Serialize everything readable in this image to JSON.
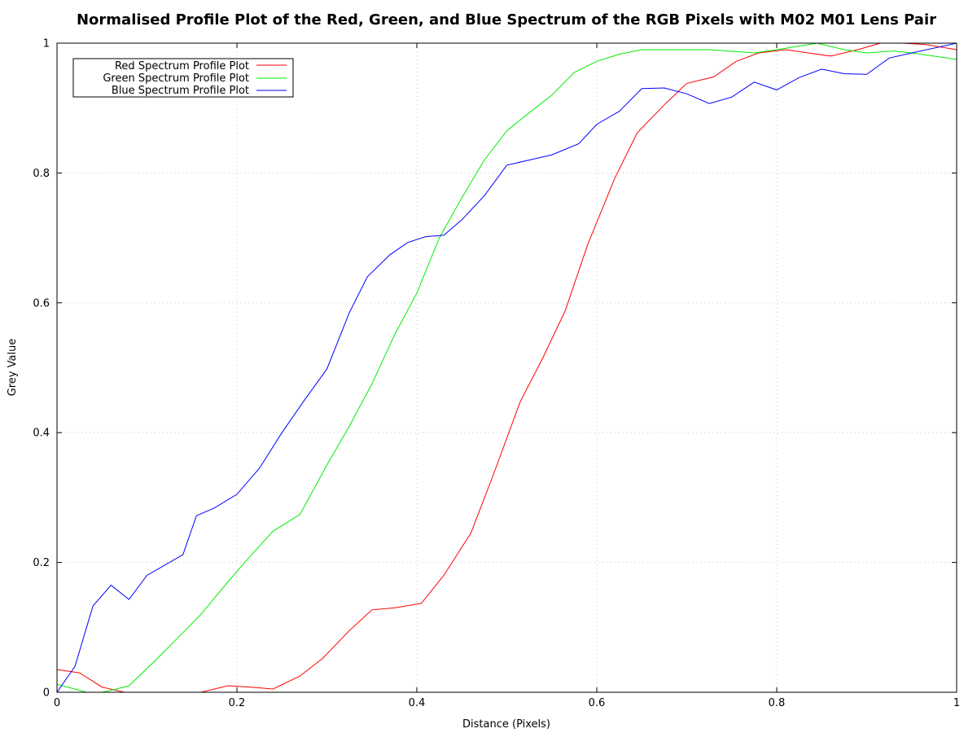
{
  "chart_data": {
    "type": "line",
    "title": "Normalised Profile Plot of the Red, Green, and Blue Spectrum of the RGB Pixels with M02 M01 Lens Pair",
    "xlabel": "Distance (Pixels)",
    "ylabel": "Grey Value",
    "xlim": [
      0,
      1
    ],
    "ylim": [
      0,
      1
    ],
    "x_ticks": [
      "0",
      "0.2",
      "0.4",
      "0.6",
      "0.8",
      "1"
    ],
    "y_ticks": [
      "0",
      "0.2",
      "0.4",
      "0.6",
      "0.8",
      "1"
    ],
    "grid": true,
    "legend_position": "top-left",
    "series": [
      {
        "name": "Red Spectrum Profile Plot",
        "color": "#ff0000",
        "x": [
          0,
          0.025,
          0.05,
          0.075,
          0.1,
          0.125,
          0.15,
          0.16,
          0.19,
          0.215,
          0.24,
          0.27,
          0.295,
          0.325,
          0.35,
          0.375,
          0.405,
          0.43,
          0.46,
          0.485,
          0.515,
          0.54,
          0.565,
          0.59,
          0.62,
          0.645,
          0.675,
          0.7,
          0.73,
          0.755,
          0.78,
          0.81,
          0.835,
          0.86,
          0.89,
          0.915,
          0.94,
          0.965,
          1.0
        ],
        "y": [
          0.035,
          0.03,
          0.008,
          0.0,
          -0.01,
          -0.02,
          -0.01,
          0.0,
          0.01,
          0.008,
          0.005,
          0.025,
          0.052,
          0.095,
          0.127,
          0.13,
          0.137,
          0.18,
          0.245,
          0.335,
          0.448,
          0.515,
          0.588,
          0.69,
          0.792,
          0.862,
          0.905,
          0.938,
          0.948,
          0.972,
          0.985,
          0.99,
          0.985,
          0.98,
          0.99,
          1.0,
          1.0,
          0.998,
          0.99
        ]
      },
      {
        "name": "Green Spectrum Profile Plot",
        "color": "#00ee00",
        "x": [
          0,
          0.02,
          0.04,
          0.06,
          0.08,
          0.11,
          0.135,
          0.16,
          0.19,
          0.215,
          0.24,
          0.27,
          0.3,
          0.325,
          0.35,
          0.375,
          0.4,
          0.425,
          0.45,
          0.475,
          0.5,
          0.525,
          0.55,
          0.575,
          0.6,
          0.625,
          0.65,
          0.7,
          0.725,
          0.775,
          0.8,
          0.845,
          0.875,
          0.9,
          0.93,
          0.95,
          1.0
        ],
        "y": [
          0.012,
          0.005,
          -0.003,
          0.003,
          0.01,
          0.05,
          0.085,
          0.12,
          0.17,
          0.21,
          0.248,
          0.274,
          0.35,
          0.41,
          0.475,
          0.55,
          0.615,
          0.7,
          0.762,
          0.82,
          0.865,
          0.893,
          0.92,
          0.955,
          0.972,
          0.983,
          0.99,
          0.99,
          0.99,
          0.985,
          0.99,
          1.0,
          0.99,
          0.985,
          0.988,
          0.985,
          0.975
        ]
      },
      {
        "name": "Blue Spectrum Profile Plot",
        "color": "#0000ff",
        "x": [
          0,
          0.02,
          0.04,
          0.06,
          0.08,
          0.1,
          0.125,
          0.14,
          0.155,
          0.175,
          0.2,
          0.225,
          0.25,
          0.275,
          0.3,
          0.325,
          0.345,
          0.37,
          0.39,
          0.41,
          0.43,
          0.45,
          0.475,
          0.5,
          0.525,
          0.55,
          0.58,
          0.6,
          0.625,
          0.65,
          0.675,
          0.7,
          0.725,
          0.75,
          0.775,
          0.8,
          0.825,
          0.85,
          0.875,
          0.9,
          0.925,
          0.95,
          1.0
        ],
        "y": [
          0.0,
          0.04,
          0.133,
          0.165,
          0.143,
          0.18,
          0.2,
          0.212,
          0.272,
          0.284,
          0.305,
          0.345,
          0.4,
          0.45,
          0.498,
          0.585,
          0.64,
          0.674,
          0.693,
          0.702,
          0.704,
          0.728,
          0.765,
          0.812,
          0.82,
          0.828,
          0.845,
          0.875,
          0.895,
          0.93,
          0.931,
          0.922,
          0.907,
          0.917,
          0.94,
          0.928,
          0.947,
          0.96,
          0.953,
          0.952,
          0.977,
          0.985,
          1.0
        ]
      }
    ]
  }
}
